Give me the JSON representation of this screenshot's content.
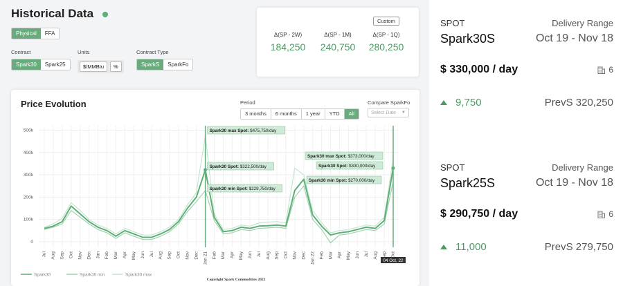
{
  "header": {
    "title": "Historical Data",
    "mode_tabs": [
      "Physical",
      "FFA"
    ],
    "mode_active": 0
  },
  "filters": {
    "contract_label": "Contract",
    "contract_options": [
      "Spark30",
      "Spark25"
    ],
    "contract_active": 0,
    "units_label": "Units",
    "units_options": [
      "$/MMBtu",
      "%"
    ],
    "type_label": "Contract Type",
    "type_options": [
      "SparkS",
      "SparkFo"
    ],
    "type_active": 0
  },
  "deltas": {
    "custom_label": "Custom",
    "items": [
      {
        "label": "Δ(SP - 2W)",
        "value": "184,250"
      },
      {
        "label": "Δ(SP - 1M)",
        "value": "240,750"
      },
      {
        "label": "Δ(SP - 1Q)",
        "value": "280,250"
      }
    ]
  },
  "chart_panel": {
    "title": "Price Evolution",
    "period_label": "Period",
    "periods": [
      "3 months",
      "6 months",
      "1 year",
      "YTD",
      "All"
    ],
    "period_active": 4,
    "compare_label": "Compare SparkFo",
    "compare_placeholder": "Select Date"
  },
  "chart_data": {
    "type": "line",
    "yticks": [
      "500k",
      "400k",
      "300k",
      "200k",
      "100k",
      "0"
    ],
    "ylim": [
      -25000,
      520000
    ],
    "xticks": [
      "Jul",
      "Aug",
      "Sep",
      "Oct",
      "Nov",
      "Dec",
      "Jan",
      "Feb",
      "Mar",
      "Apr",
      "May",
      "Jun",
      "Jul",
      "Aug",
      "Sep",
      "Oct",
      "Nov",
      "Dec",
      "Jan 21",
      "Feb",
      "Mar",
      "Apr",
      "May",
      "Jun",
      "Jul",
      "Aug",
      "Sep",
      "Oct",
      "Nov",
      "Dec",
      "Jan 22",
      "Feb",
      "Mar",
      "Apr",
      "May",
      "Jun",
      "Jul",
      "Aug",
      "Sep",
      "Oct"
    ],
    "series": [
      {
        "name": "Spark30",
        "color": "#5fae79",
        "values": [
          60000,
          70000,
          90000,
          160000,
          125000,
          90000,
          65000,
          50000,
          25000,
          50000,
          35000,
          20000,
          20000,
          35000,
          55000,
          90000,
          150000,
          200000,
          322500,
          110000,
          45000,
          50000,
          65000,
          60000,
          70000,
          72000,
          75000,
          70000,
          230000,
          280000,
          120000,
          70000,
          30000,
          40000,
          45000,
          55000,
          65000,
          60000,
          95000,
          330000
        ]
      },
      {
        "name": "Spark30 min",
        "color": "#9fd3ae",
        "values": [
          55000,
          65000,
          80000,
          140000,
          110000,
          80000,
          55000,
          40000,
          15000,
          40000,
          25000,
          10000,
          10000,
          25000,
          45000,
          80000,
          135000,
          180000,
          229750,
          95000,
          35000,
          40000,
          55000,
          50000,
          60000,
          62000,
          65000,
          60000,
          200000,
          250000,
          100000,
          55000,
          -5000,
          30000,
          35000,
          45000,
          55000,
          50000,
          80000,
          270000
        ]
      },
      {
        "name": "Spark30 max",
        "color": "#c3e7cd",
        "values": [
          65000,
          80000,
          105000,
          175000,
          140000,
          100000,
          75000,
          60000,
          35000,
          60000,
          45000,
          30000,
          30000,
          45000,
          65000,
          100000,
          165000,
          220000,
          475750,
          125000,
          55000,
          60000,
          75000,
          70000,
          85000,
          88000,
          90000,
          85000,
          330000,
          300000,
          140000,
          85000,
          40000,
          50000,
          55000,
          65000,
          75000,
          70000,
          110000,
          373000
        ]
      }
    ],
    "tooltips": [
      {
        "label": "Spark30 max Spot:",
        "value": "$475,750/day"
      },
      {
        "label": "Spark30 Spot:",
        "value": "$322,500/day"
      },
      {
        "label": "Spark30 min Spot:",
        "value": "$229,750/day"
      },
      {
        "label": "Spark30 max Spot:",
        "value": "$373,000/day"
      },
      {
        "label": "Spark30 Spot:",
        "value": "$330,000/day"
      },
      {
        "label": "Spark30 min Spot:",
        "value": "$270,000/day"
      }
    ],
    "cursor_label": "04 Oct, 22",
    "credit": "Copyright Spark Commodities 2022"
  },
  "spots": [
    {
      "kind": "SPOT",
      "name": "Spark30S",
      "range_label": "Delivery Range",
      "range": "Oct 19 - Nov 18",
      "price": "$ 330,000 / day",
      "count": "6",
      "change": "9,750",
      "prev": "PrevS 320,250"
    },
    {
      "kind": "SPOT",
      "name": "Spark25S",
      "range_label": "Delivery Range",
      "range": "Oct 19 - Nov 18",
      "price": "$ 290,750 / day",
      "count": "6",
      "change": "11,000",
      "prev": "PrevS 279,750"
    }
  ]
}
